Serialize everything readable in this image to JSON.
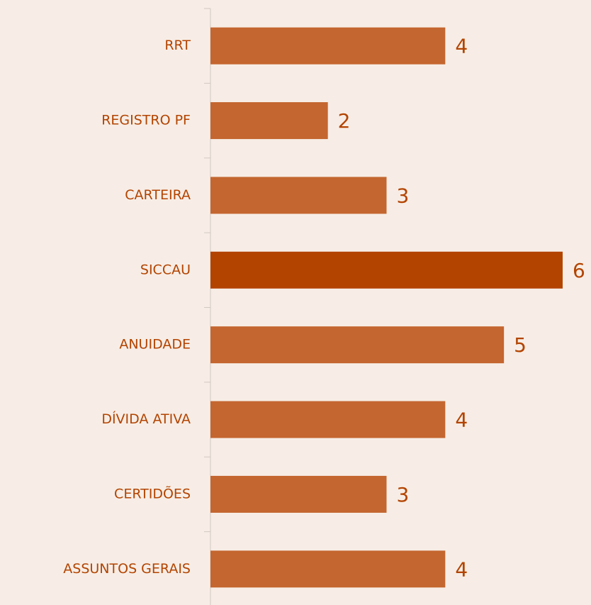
{
  "chart_data": {
    "type": "hbar",
    "categories": [
      "RRT",
      "REGISTRO PF",
      "CARTEIRA",
      "SICCAU",
      "ANUIDADE",
      "DÍVIDA ATIVA",
      "CERTIDÕES",
      "ASSUNTOS GERAIS"
    ],
    "values": [
      4,
      2,
      3,
      6,
      5,
      4,
      3,
      4
    ],
    "colors": [
      "#c4662f",
      "#c4662f",
      "#c4662f",
      "#b34400",
      "#c4662f",
      "#c4662f",
      "#c4662f",
      "#c4662f"
    ]
  }
}
